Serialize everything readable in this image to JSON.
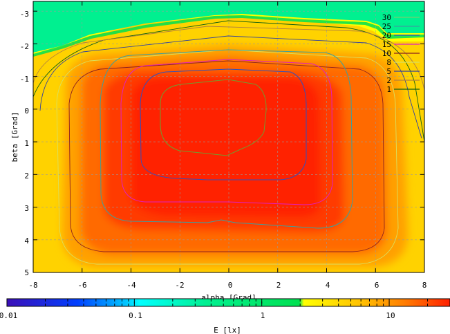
{
  "chart_data": {
    "type": "heatmap",
    "xlabel": "alpha [Grad]",
    "ylabel": "beta [Grad]",
    "colorbar_label": "E [lx]",
    "x_ticks": [
      "-8",
      "-6",
      "-4",
      "-2",
      "0",
      "2",
      "4",
      "6",
      "8"
    ],
    "y_ticks": [
      "-3",
      "-2",
      "-1",
      "0",
      "1",
      "2",
      "3",
      "4",
      "5"
    ],
    "colorbar_ticks": [
      "0.01",
      "0.1",
      "1",
      "10"
    ],
    "xlim": [
      -8,
      8
    ],
    "ylim": [
      -3.3,
      5
    ],
    "y_axis_inverted": true,
    "colorbar_range": [
      0.01,
      30
    ],
    "colorbar_scale": "log",
    "grid": true,
    "legend_position": "top-right",
    "contour_levels": [
      {
        "label": "30",
        "value": 30,
        "color": "#6fd06f"
      },
      {
        "label": "25",
        "value": 25,
        "color": "#3aa0a0"
      },
      {
        "label": "20",
        "value": 20,
        "color": "#3050c0"
      },
      {
        "label": "15",
        "value": 15,
        "color": "#e020c0"
      },
      {
        "label": "10",
        "value": 10,
        "color": "#8b2020"
      },
      {
        "label": "8",
        "value": 8,
        "color": "#d8e060"
      },
      {
        "label": "5",
        "value": 5,
        "color": "#3040a0"
      },
      {
        "label": "2",
        "value": 2,
        "color": "#b08040"
      },
      {
        "label": "1",
        "value": 1,
        "color": "#106010"
      }
    ],
    "colormap": [
      "#3b0fb8",
      "#0040ff",
      "#00c8ff",
      "#00ffff",
      "#00f090",
      "#00e050",
      "#ffff00",
      "#ffc000",
      "#ff7a00",
      "#ff2000"
    ]
  }
}
